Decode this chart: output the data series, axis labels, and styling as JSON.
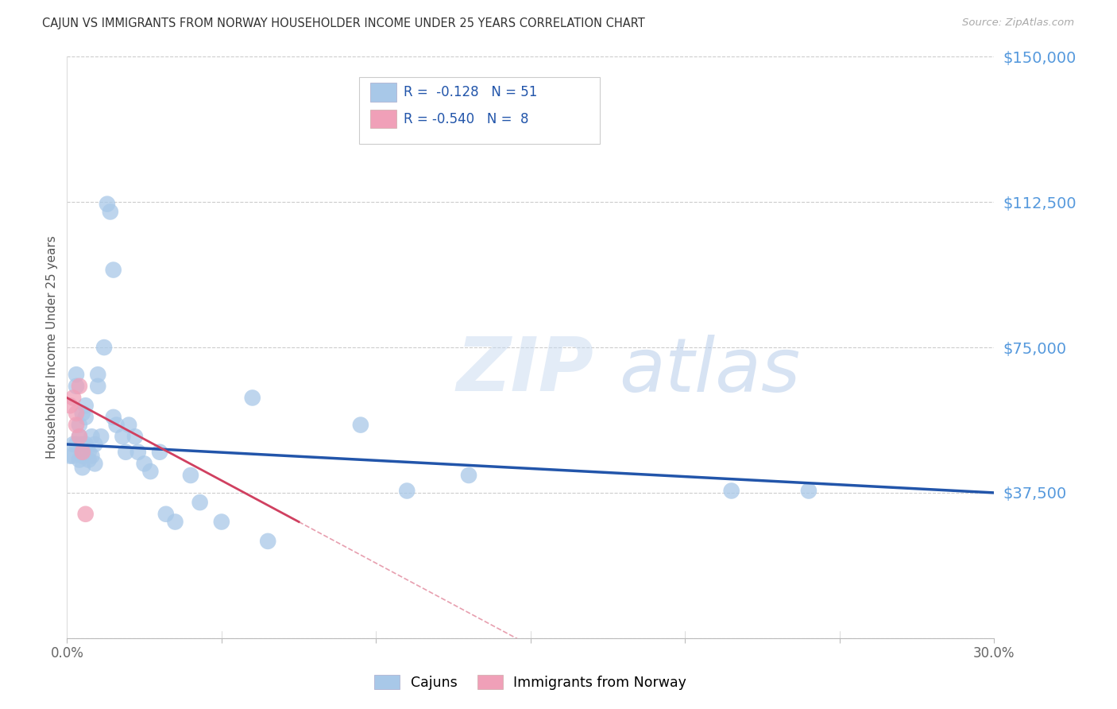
{
  "title": "CAJUN VS IMMIGRANTS FROM NORWAY HOUSEHOLDER INCOME UNDER 25 YEARS CORRELATION CHART",
  "source": "Source: ZipAtlas.com",
  "ylabel": "Householder Income Under 25 years",
  "xlim": [
    0.0,
    0.3
  ],
  "ylim": [
    0,
    150000
  ],
  "yticks": [
    0,
    37500,
    75000,
    112500,
    150000
  ],
  "ytick_labels": [
    "",
    "$37,500",
    "$75,000",
    "$112,500",
    "$150,000"
  ],
  "xticks": [
    0.0,
    0.05,
    0.1,
    0.15,
    0.2,
    0.25,
    0.3
  ],
  "xtick_labels": [
    "0.0%",
    "",
    "",
    "",
    "",
    "",
    "30.0%"
  ],
  "cajun_color": "#a8c8e8",
  "norway_color": "#f0a0b8",
  "trendline_cajun_color": "#2255aa",
  "trendline_norway_color": "#d04060",
  "watermark_zip": "ZIP",
  "watermark_atlas": "atlas",
  "legend_r_cajun": "-0.128",
  "legend_n_cajun": "51",
  "legend_r_norway": "-0.540",
  "legend_n_norway": "8",
  "cajun_x": [
    0.001,
    0.002,
    0.002,
    0.003,
    0.003,
    0.003,
    0.004,
    0.004,
    0.004,
    0.005,
    0.005,
    0.005,
    0.005,
    0.006,
    0.006,
    0.006,
    0.007,
    0.007,
    0.008,
    0.008,
    0.009,
    0.009,
    0.01,
    0.01,
    0.011,
    0.012,
    0.013,
    0.014,
    0.015,
    0.015,
    0.016,
    0.018,
    0.019,
    0.02,
    0.022,
    0.023,
    0.025,
    0.027,
    0.03,
    0.032,
    0.035,
    0.04,
    0.043,
    0.05,
    0.06,
    0.065,
    0.095,
    0.11,
    0.13,
    0.215,
    0.24
  ],
  "cajun_y": [
    47000,
    50000,
    47000,
    68000,
    65000,
    50000,
    55000,
    52000,
    46000,
    58000,
    50000,
    47000,
    44000,
    60000,
    57000,
    50000,
    48000,
    46000,
    52000,
    47000,
    50000,
    45000,
    68000,
    65000,
    52000,
    75000,
    112000,
    110000,
    95000,
    57000,
    55000,
    52000,
    48000,
    55000,
    52000,
    48000,
    45000,
    43000,
    48000,
    32000,
    30000,
    42000,
    35000,
    30000,
    62000,
    25000,
    55000,
    38000,
    42000,
    38000,
    38000
  ],
  "norway_x": [
    0.001,
    0.002,
    0.003,
    0.003,
    0.004,
    0.004,
    0.005,
    0.006
  ],
  "norway_y": [
    60000,
    62000,
    58000,
    55000,
    65000,
    52000,
    48000,
    32000
  ]
}
